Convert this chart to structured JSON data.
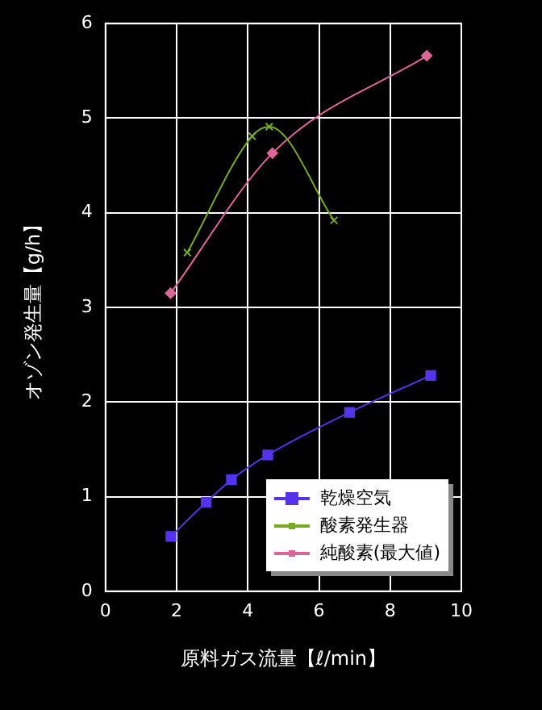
{
  "chart_data": {
    "type": "line",
    "xlabel": "原料ガス流量【ℓ/min】",
    "ylabel": "オゾン発生量【g/h】",
    "xlim": [
      0,
      10
    ],
    "xticks": [
      0,
      2,
      4,
      6,
      8,
      10
    ],
    "ylim": [
      0,
      6
    ],
    "yticks": [
      0,
      1,
      2,
      3,
      4,
      5,
      6
    ],
    "grid": true,
    "legend": "bottom right",
    "series": [
      {
        "name": "乾燥空気",
        "color": "#5533ee",
        "marker": "square",
        "x": [
          1.84,
          2.83,
          3.54,
          4.56,
          6.86,
          9.14
        ],
        "values": [
          0.58,
          0.94,
          1.18,
          1.44,
          1.89,
          2.28
        ]
      },
      {
        "name": "酸素発生器",
        "color": "#77aa22",
        "marker": "cross",
        "x": [
          2.3,
          4.12,
          4.6,
          6.42
        ],
        "values": [
          3.58,
          4.81,
          4.91,
          3.92
        ]
      },
      {
        "name": "純酸素(最大値)",
        "color": "#dd6699",
        "marker": "diamond",
        "x": [
          1.83,
          4.69,
          9.03
        ],
        "values": [
          3.15,
          4.63,
          5.66
        ]
      }
    ]
  }
}
